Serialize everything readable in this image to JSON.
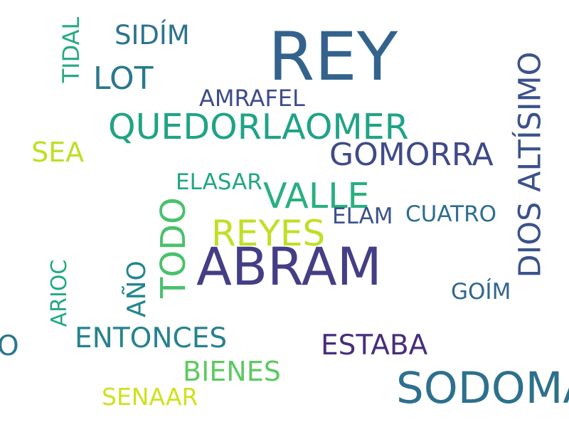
{
  "words": [
    {
      "text": "REY",
      "color": "#33638d"
    },
    {
      "text": "ABRAM",
      "color": "#433e85"
    },
    {
      "text": "SODOMA",
      "color": "#2d708e"
    },
    {
      "text": "QUEDORLAOMER",
      "color": "#20a386"
    },
    {
      "text": "DIOS ALTÍSIMO",
      "color": "#3b528b"
    },
    {
      "text": "GOMORRA",
      "color": "#3e4a89"
    },
    {
      "text": "VALLE",
      "color": "#29af7f"
    },
    {
      "text": "REYES",
      "color": "#c0df25"
    },
    {
      "text": "TODO",
      "color": "#4ac16d"
    },
    {
      "text": "LOT",
      "color": "#2a788e"
    },
    {
      "text": "SIDÍM",
      "color": "#2c738e"
    },
    {
      "text": "AMRAFEL",
      "color": "#3e4c8a"
    },
    {
      "text": "TIDAL",
      "color": "#25ab82"
    },
    {
      "text": "SEA",
      "color": "#bddf26"
    },
    {
      "text": "ELASAR",
      "color": "#22a785"
    },
    {
      "text": "ELAM",
      "color": "#3b528b"
    },
    {
      "text": "CUATRO",
      "color": "#2e6d8e"
    },
    {
      "text": "GOÍM",
      "color": "#31668e"
    },
    {
      "text": "ARIOC",
      "color": "#22a884"
    },
    {
      "text": "AÑO",
      "color": "#24868e"
    },
    {
      "text": "ENTONCES",
      "color": "#26828e"
    },
    {
      "text": "ESTABA",
      "color": "#472d7b"
    },
    {
      "text": "BIENES",
      "color": "#5ec962"
    },
    {
      "text": "SENAAR",
      "color": "#d0e11c"
    },
    {
      "text": "O",
      "color": "#2a788e"
    }
  ]
}
